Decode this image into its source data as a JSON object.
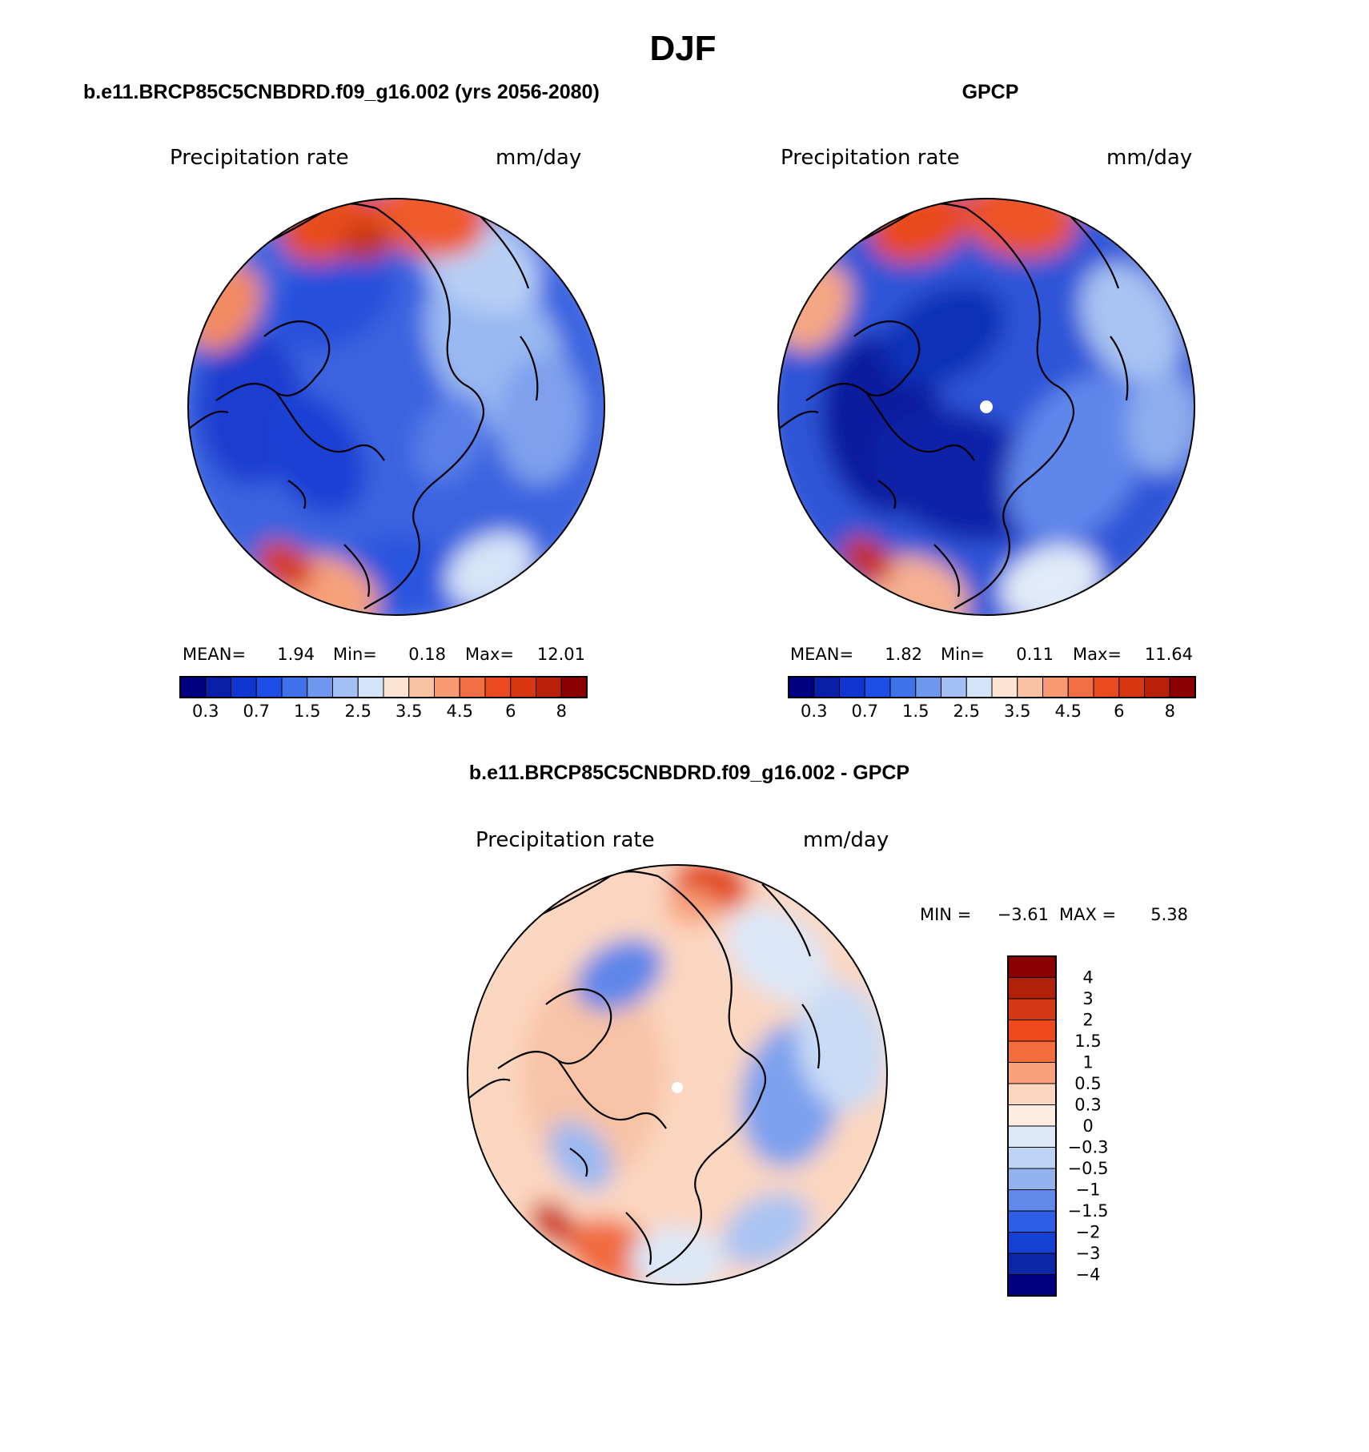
{
  "figure": {
    "title": "DJF"
  },
  "panels": [
    {
      "id": "model",
      "header": "b.e11.BRCP85C5CNBDRD.f09_g16.002 (yrs 2056-2080)",
      "variable": "Precipitation rate",
      "units": "mm/day",
      "stats": {
        "mean_label": "MEAN=",
        "mean": "1.94",
        "min_label": "Min=",
        "min": "0.18",
        "max_label": "Max=",
        "max": "12.01"
      }
    },
    {
      "id": "obs",
      "header": "GPCP",
      "variable": "Precipitation rate",
      "units": "mm/day",
      "stats": {
        "mean_label": "MEAN=",
        "mean": "1.82",
        "min_label": "Min=",
        "min": "0.11",
        "max_label": "Max=",
        "max": "11.64"
      }
    },
    {
      "id": "diff",
      "header": "b.e11.BRCP85C5CNBDRD.f09_g16.002 - GPCP",
      "variable": "Precipitation rate",
      "units": "mm/day",
      "stats": {
        "min_label": "MIN =",
        "min": "−3.61",
        "max_label": "MAX =",
        "max": "5.38"
      }
    }
  ],
  "colorbars": {
    "absolute": {
      "colors": [
        "#000080",
        "#0a1fa8",
        "#0f36d0",
        "#1d4fe8",
        "#3f72ea",
        "#6e97ee",
        "#a3bff3",
        "#d4e4f8",
        "#fce3d2",
        "#f9c2a2",
        "#f79a73",
        "#f26f45",
        "#ea4a1e",
        "#d83511",
        "#b82108",
        "#8b0000"
      ],
      "tick_labels": [
        "0.3",
        "0.7",
        "1.5",
        "2.5",
        "3.5",
        "4.5",
        "6",
        "8"
      ],
      "tick_after_box": [
        1,
        3,
        5,
        7,
        9,
        11,
        13,
        15
      ]
    },
    "difference": {
      "colors": [
        "#8b0000",
        "#b0200a",
        "#d43815",
        "#ee4a1e",
        "#f36d3e",
        "#f7a27a",
        "#fad6c0",
        "#fdece0",
        "#dde9f8",
        "#bcd3f3",
        "#93b3ef",
        "#5f8aea",
        "#2f5ee6",
        "#1540d2",
        "#0c27a8",
        "#000080"
      ],
      "tick_labels": [
        "4",
        "3",
        "2",
        "1.5",
        "1",
        "0.5",
        "0.3",
        "0",
        "−0.3",
        "−0.5",
        "−1",
        "−1.5",
        "−2",
        "−3",
        "−4"
      ]
    }
  },
  "map_fields": {
    "model": {
      "base": "#3a64e0",
      "blobs": [
        {
          "lon": 270,
          "r": 0.7,
          "s": 0.3,
          "c": "#1a3ccf"
        },
        {
          "lon": 240,
          "r": 0.45,
          "s": 0.25,
          "c": "#1c41d4"
        },
        {
          "lon": 180,
          "r": 0.8,
          "s": 0.22,
          "c": "#2c55de"
        },
        {
          "lon": 330,
          "r": 0.6,
          "s": 0.25,
          "c": "#2850db"
        },
        {
          "lon": 60,
          "r": 0.55,
          "s": 0.35,
          "c": "#9ab8f1"
        },
        {
          "lon": 30,
          "r": 0.8,
          "s": 0.25,
          "c": "#b8cff5"
        },
        {
          "lon": 95,
          "r": 0.7,
          "s": 0.25,
          "c": "#7ea0ed"
        },
        {
          "lon": 10,
          "r": 0.92,
          "s": 0.22,
          "c": "#ef5a2c"
        },
        {
          "lon": 340,
          "r": 0.93,
          "s": 0.2,
          "c": "#e64b1f"
        },
        {
          "lon": 350,
          "r": 0.8,
          "s": 0.1,
          "c": "#c23410"
        },
        {
          "lon": 300,
          "r": 0.95,
          "s": 0.18,
          "c": "#f28a63"
        },
        {
          "lon": 200,
          "r": 0.95,
          "s": 0.2,
          "c": "#f6a17c"
        },
        {
          "lon": 215,
          "r": 0.93,
          "s": 0.12,
          "c": "#d73d12"
        },
        {
          "lon": 150,
          "r": 0.9,
          "s": 0.18,
          "c": "#d7e5f8"
        },
        {
          "lon": 120,
          "r": 0.3,
          "s": 0.18,
          "c": "#5a80e8"
        }
      ]
    },
    "obs": {
      "base": "#2e55d8",
      "blobs": [
        {
          "lon": 260,
          "r": 0.5,
          "s": 0.35,
          "c": "#0a1f9e"
        },
        {
          "lon": 200,
          "r": 0.35,
          "s": 0.35,
          "c": "#0c24a8"
        },
        {
          "lon": 330,
          "r": 0.4,
          "s": 0.25,
          "c": "#1033b8"
        },
        {
          "lon": 120,
          "r": 0.5,
          "s": 0.35,
          "c": "#5f86ea"
        },
        {
          "lon": 60,
          "r": 0.8,
          "s": 0.25,
          "c": "#a9c3f3"
        },
        {
          "lon": 95,
          "r": 0.85,
          "s": 0.2,
          "c": "#8eaeee"
        },
        {
          "lon": 10,
          "r": 0.92,
          "s": 0.22,
          "c": "#ec5325"
        },
        {
          "lon": 340,
          "r": 0.93,
          "s": 0.2,
          "c": "#e84a1d"
        },
        {
          "lon": 300,
          "r": 0.95,
          "s": 0.18,
          "c": "#f5a683"
        },
        {
          "lon": 200,
          "r": 0.95,
          "s": 0.2,
          "c": "#f6b092"
        },
        {
          "lon": 218,
          "r": 0.93,
          "s": 0.11,
          "c": "#c92e10"
        },
        {
          "lon": 160,
          "r": 0.9,
          "s": 0.2,
          "c": "#e1ebf9"
        }
      ]
    },
    "diff": {
      "base": "#fbd6c0",
      "blobs": [
        {
          "lon": 270,
          "r": 0.4,
          "s": 0.4,
          "c": "#f8c3a6"
        },
        {
          "lon": 100,
          "r": 0.55,
          "s": 0.28,
          "c": "#7ba0ee"
        },
        {
          "lon": 80,
          "r": 0.8,
          "s": 0.25,
          "c": "#c9dbf5"
        },
        {
          "lon": 40,
          "r": 0.75,
          "s": 0.22,
          "c": "#dbe7f8"
        },
        {
          "lon": 330,
          "r": 0.55,
          "s": 0.18,
          "c": "#5f86ea"
        },
        {
          "lon": 10,
          "r": 0.92,
          "s": 0.15,
          "c": "#e2481c"
        },
        {
          "lon": 5,
          "r": 0.8,
          "s": 0.1,
          "c": "#f7a07a"
        },
        {
          "lon": 200,
          "r": 0.9,
          "s": 0.18,
          "c": "#f06a3c"
        },
        {
          "lon": 220,
          "r": 0.92,
          "s": 0.1,
          "c": "#cc3311"
        },
        {
          "lon": 180,
          "r": 0.88,
          "s": 0.18,
          "c": "#dce8f8"
        },
        {
          "lon": 150,
          "r": 0.85,
          "s": 0.18,
          "c": "#a9c3f3"
        },
        {
          "lon": 230,
          "r": 0.6,
          "s": 0.15,
          "c": "#9ab8f1"
        }
      ]
    }
  }
}
